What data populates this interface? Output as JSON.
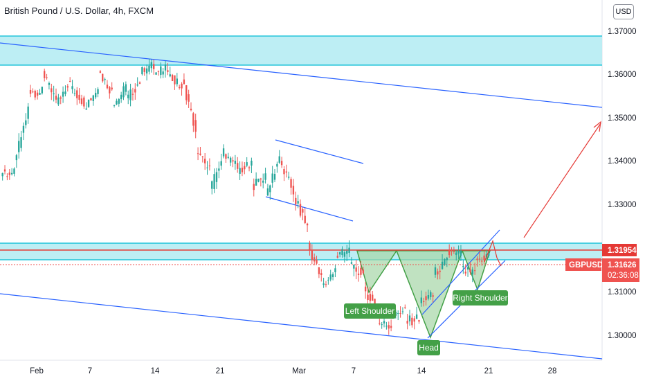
{
  "header": {
    "title": "British Pound / U.S. Dollar, 4h, FXCM",
    "currency_button": "USD"
  },
  "price_tags": {
    "resistance_price": "1.31954",
    "symbol": "GBPUSD",
    "last_price": "1.31626",
    "countdown": "02:36:08"
  },
  "colors": {
    "up": "#26a69a",
    "down": "#ef5350",
    "zone_fill": "#b2ebf2",
    "zone_line": "#00bcd4",
    "trend_line": "#2962ff",
    "pattern_fill": "#a5d6a7",
    "pattern_line": "#43a047",
    "label_bg": "#43a047",
    "resistance": "#e53935",
    "projection": "#e53935"
  },
  "chart_data": {
    "type": "candlestick",
    "title": "British Pound / U.S. Dollar, 4h, FXCM",
    "y_axis": {
      "ticks": [
        "1.37000",
        "1.36000",
        "1.35000",
        "1.34000",
        "1.33000",
        "1.31000",
        "1.30000"
      ],
      "range": [
        1.295,
        1.378
      ]
    },
    "x_axis": {
      "ticks": [
        "Feb",
        "7",
        "14",
        "21",
        "Mar",
        "7",
        "14",
        "21",
        "28"
      ]
    },
    "price_path": [
      [
        1.342,
        1.3365,
        1.3405,
        1.3375
      ],
      [
        1.3372,
        1.335,
        1.3415,
        1.3395
      ],
      [
        1.352,
        1.347,
        1.3585,
        1.356
      ],
      [
        1.356,
        1.353,
        1.3625,
        1.36
      ],
      [
        1.354,
        1.35,
        1.357,
        1.353
      ],
      [
        1.359,
        1.3545,
        1.3615,
        1.357
      ],
      [
        1.3535,
        1.351,
        1.356,
        1.3525
      ],
      [
        1.357,
        1.354,
        1.363,
        1.361
      ],
      [
        1.356,
        1.351,
        1.3585,
        1.3525
      ],
      [
        1.357,
        1.352,
        1.359,
        1.354
      ],
      [
        1.3585,
        1.3545,
        1.362,
        1.3605
      ],
      [
        1.362,
        1.358,
        1.364,
        1.3605
      ],
      [
        1.3612,
        1.358,
        1.3635,
        1.36
      ],
      [
        1.357,
        1.352,
        1.3615,
        1.359
      ],
      [
        1.347,
        1.339,
        1.35,
        1.342
      ],
      [
        1.338,
        1.329,
        1.344,
        1.333
      ],
      [
        1.342,
        1.336,
        1.344,
        1.341
      ],
      [
        1.3395,
        1.337,
        1.343,
        1.338
      ],
      [
        1.339,
        1.332,
        1.341,
        1.334
      ],
      [
        1.337,
        1.329,
        1.342,
        1.332
      ],
      [
        1.341,
        1.338,
        1.342,
        1.34
      ],
      [
        1.333,
        1.329,
        1.337,
        1.332
      ],
      [
        1.325,
        1.32,
        1.327,
        1.321
      ],
      [
        1.313,
        1.309,
        1.318,
        1.311
      ],
      [
        1.315,
        1.31,
        1.319,
        1.318
      ],
      [
        1.3195,
        1.315,
        1.321,
        1.316
      ],
      [
        1.314,
        1.309,
        1.318,
        1.311
      ],
      [
        1.306,
        1.301,
        1.308,
        1.303
      ],
      [
        1.302,
        1.299,
        1.306,
        1.305
      ],
      [
        1.306,
        1.301,
        1.308,
        1.303
      ],
      [
        1.304,
        1.301,
        1.309,
        1.308
      ],
      [
        1.309,
        1.306,
        1.315,
        1.314
      ],
      [
        1.317,
        1.313,
        1.3205,
        1.319
      ],
      [
        1.3185,
        1.314,
        1.32,
        1.315
      ],
      [
        1.314,
        1.311,
        1.318,
        1.317
      ],
      [
        1.3185,
        1.315,
        1.3205,
        1.3163
      ]
    ],
    "zones": [
      {
        "low": 1.362,
        "high": 1.3685
      },
      {
        "low": 1.3175,
        "high": 1.3215
      }
    ],
    "resistance_level": 1.31954,
    "last_price": 1.31626,
    "pattern_labels": [
      "Left Shoulder",
      "Head",
      "Right Shoulder"
    ]
  }
}
